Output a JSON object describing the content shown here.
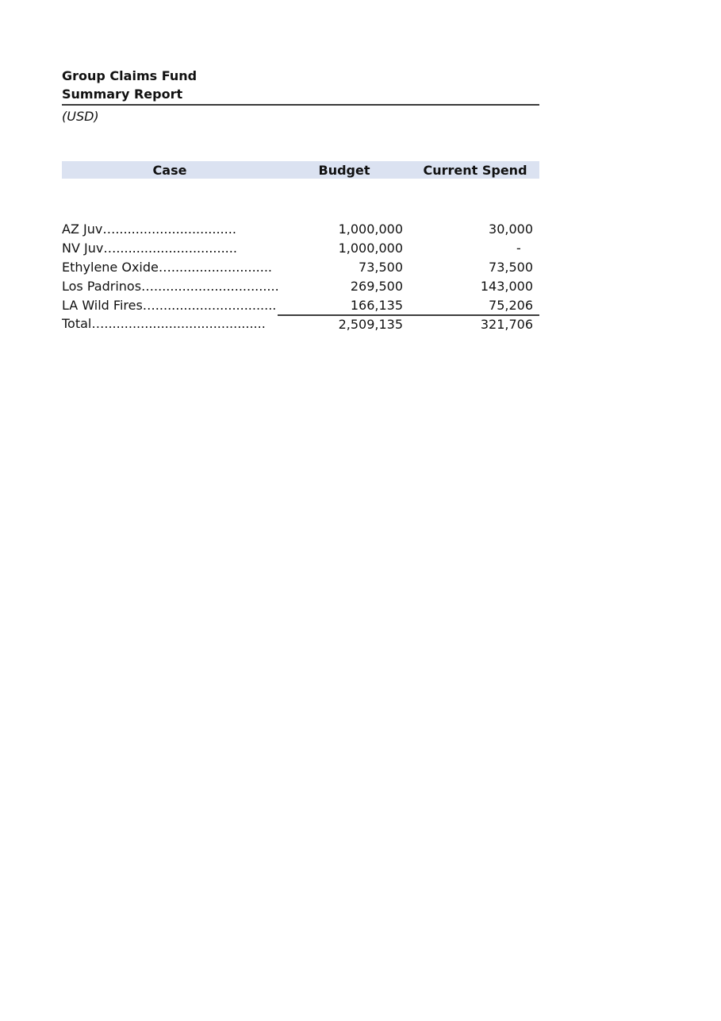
{
  "report": {
    "title": "Group Claims Fund",
    "subtitle": "Summary Report",
    "currency_note": "(USD)"
  },
  "table": {
    "headers": {
      "case": "Case",
      "budget": "Budget",
      "spend": "Current Spend"
    },
    "rows": [
      {
        "case": "AZ Juv…..............................",
        "budget": "1,000,000",
        "spend": "30,000"
      },
      {
        "case": "NV Juv…..............................",
        "budget": "1,000,000",
        "spend": "-   "
      },
      {
        "case": "Ethylene Oxide….........................",
        "budget": "73,500",
        "spend": "73,500"
      },
      {
        "case": "Los Padrinos…...............................",
        "budget": "269,500",
        "spend": "143,000"
      },
      {
        "case": "LA Wild Fires…..............................",
        "budget": "166,135",
        "spend": "75,206"
      }
    ],
    "total": {
      "case": "Total…........................................",
      "budget": "2,509,135",
      "spend": "321,706"
    }
  },
  "colors": {
    "header_band": "#dbe2f1",
    "rule": "#3a3a3a",
    "text": "#111111",
    "page_background": "#ffffff"
  }
}
